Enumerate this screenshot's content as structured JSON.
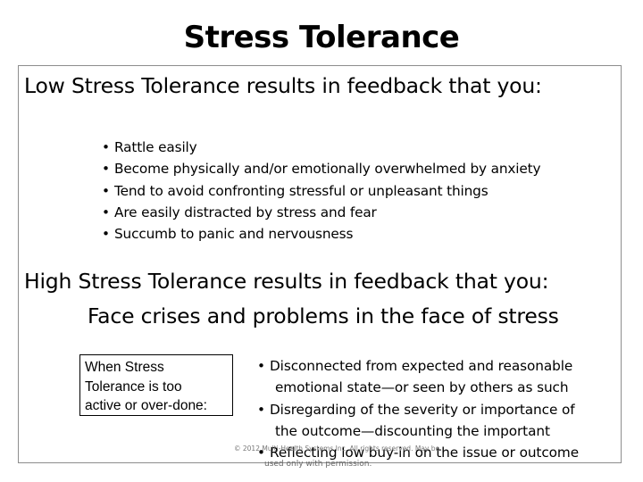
{
  "slide": {
    "title": "Stress Tolerance",
    "low": {
      "heading": "Low Stress Tolerance results in feedback that you:",
      "items": [
        "Rattle easily",
        "Become physically and/or emotionally overwhelmed by anxiety",
        "Tend to avoid confronting stressful or unpleasant things",
        "Are easily distracted by stress and fear",
        "Succumb to panic and nervousness"
      ]
    },
    "high": {
      "heading": "High Stress Tolerance results in feedback that you:",
      "subheading": "Face crises and problems in the face of stress"
    },
    "callout": {
      "lines": [
        "When Stress",
        "Tolerance is too",
        "active or over-done:"
      ]
    },
    "overdone": {
      "items": [
        [
          "Disconnected from expected and reasonable",
          "emotional state—or seen by others as such"
        ],
        [
          "Disregarding of the severity or importance of",
          "the outcome—discounting the important"
        ],
        [
          "Reflecting low buy-in on the issue or outcome"
        ]
      ]
    },
    "footer": {
      "copyright": "© 2012 Multi-Health Systems Inc. All rights reserved. May be",
      "permission": "used only with permission."
    },
    "bullet_char": "•"
  }
}
